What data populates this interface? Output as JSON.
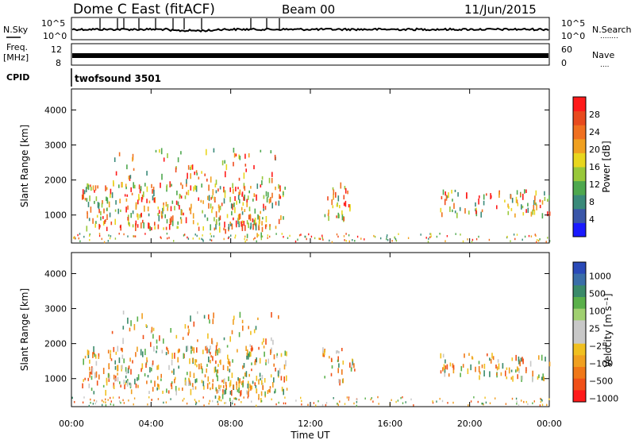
{
  "header": {
    "station": "Dome C East (fitACF)",
    "beam": "Beam 00",
    "date": "11/Jun/2015"
  },
  "top_panels": {
    "nsky": {
      "label": "N.Sky",
      "ticks": [
        "10^5",
        "10^0"
      ],
      "right_ticks": [
        "10^5",
        "10^0"
      ],
      "right_label": "N.Search",
      "right_dots": "........"
    },
    "freq": {
      "label_top": "Freq.",
      "label_unit": "[MHz]",
      "ticks": [
        "12",
        "8"
      ],
      "right_ticks": [
        "60",
        "0"
      ],
      "right_label": "Nave",
      "right_dots": "...."
    },
    "cpid": {
      "label": "CPID",
      "value": "twofsound 3501"
    }
  },
  "x_axis": {
    "ticks": [
      "00:00",
      "04:00",
      "08:00",
      "12:00",
      "16:00",
      "20:00",
      "00:00"
    ],
    "tick_hours": [
      0,
      4,
      8,
      12,
      16,
      20,
      24
    ],
    "label": "Time UT"
  },
  "chart_data": [
    {
      "type": "heatmap",
      "name": "power",
      "ylabel": "Slant Range [km]",
      "y_ticks": [
        1000,
        2000,
        3000,
        4000
      ],
      "ylim": [
        200,
        4600
      ],
      "xlim_hours": [
        0,
        24
      ],
      "colorbar": {
        "label": "Power [dB]",
        "ticks": [
          "4",
          "8",
          "12",
          "16",
          "20",
          "24",
          "28"
        ],
        "colors": [
          "#1a1aff",
          "#3a56a8",
          "#3a8a7a",
          "#4ea84e",
          "#98c83a",
          "#e8d61e",
          "#f0a020",
          "#f07020",
          "#e84a1e",
          "#ff1a1a"
        ]
      }
    },
    {
      "type": "heatmap",
      "name": "velocity",
      "ylabel": "Slant Range [km]",
      "y_ticks": [
        1000,
        2000,
        3000,
        4000
      ],
      "ylim": [
        200,
        4600
      ],
      "xlim_hours": [
        0,
        24
      ],
      "colorbar": {
        "label": "Velocity [m s⁻¹]",
        "ticks": [
          "1000",
          "500",
          "100",
          "25",
          "−25",
          "−100",
          "−500",
          "−1000"
        ],
        "colors": [
          "#2a4ab8",
          "#3a6ea8",
          "#3a8a6a",
          "#5ab04a",
          "#a0d070",
          "#c8c8c8",
          "#c8c8c8",
          "#f0c020",
          "#f0a020",
          "#f07818",
          "#f05018",
          "#ff1a1a"
        ]
      }
    }
  ]
}
